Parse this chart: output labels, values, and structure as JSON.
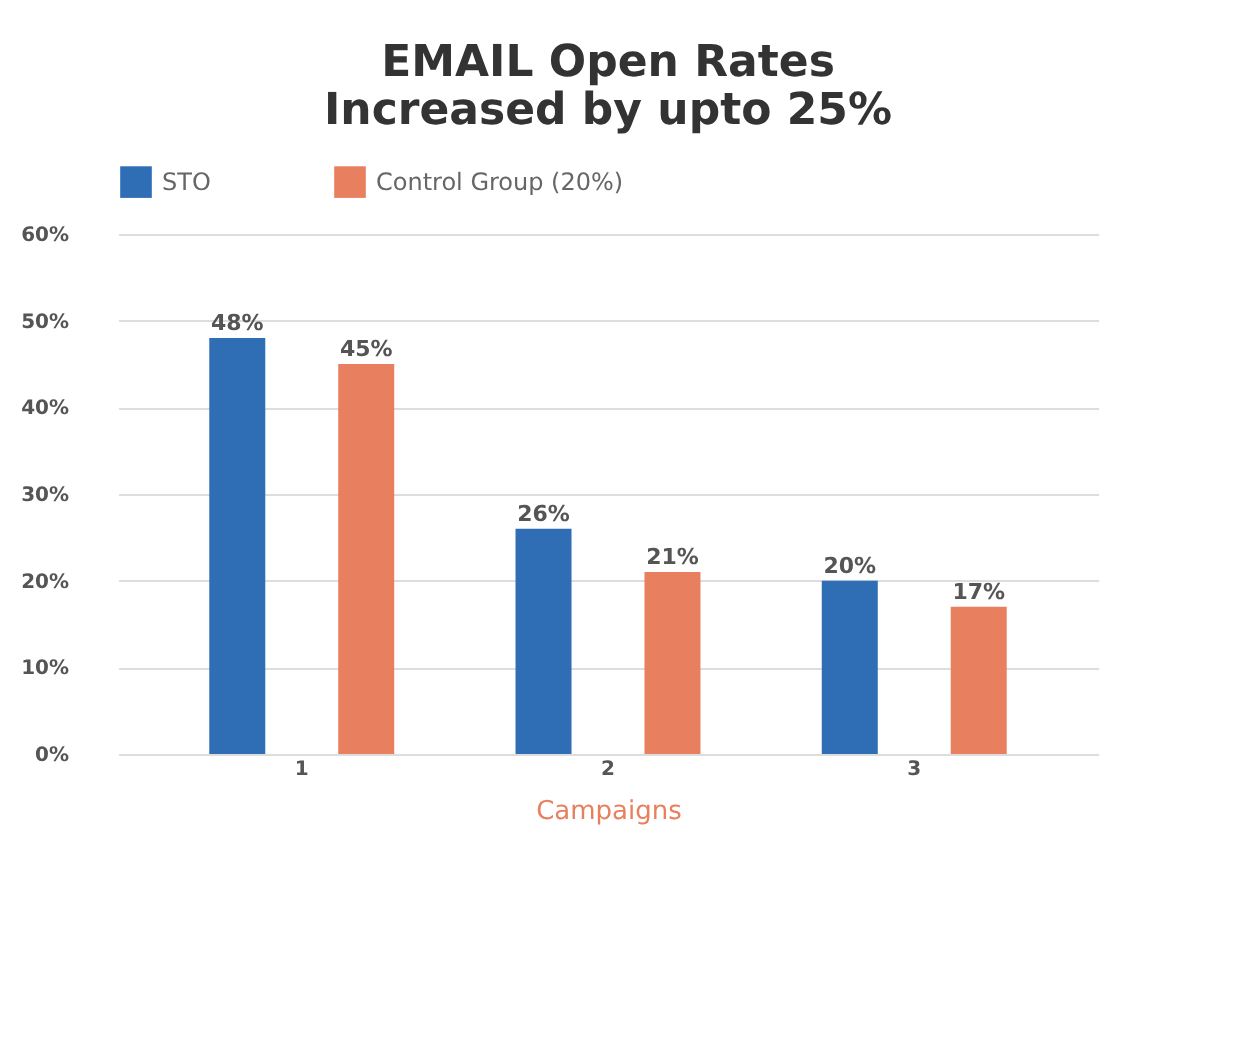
{
  "chart_data": {
    "type": "bar",
    "title": "EMAIL Open Rates\nIncreased by upto 25%",
    "categories": [
      "1",
      "2",
      "3"
    ],
    "xlabel": "Campaigns",
    "series": [
      {
        "name": "STO",
        "color": "#2f6db5",
        "values": [
          48,
          26,
          20
        ],
        "value_labels": [
          "48%",
          "26%",
          "20%"
        ]
      },
      {
        "name": "Control Group (20%)",
        "color": "#e8805f",
        "values": [
          45,
          21,
          17
        ],
        "value_labels": [
          "45%",
          "21%",
          "17%"
        ]
      }
    ],
    "ylim": [
      0,
      60
    ],
    "yticks": [
      {
        "value": 0,
        "label": "0%"
      },
      {
        "value": 10,
        "label": "10%"
      },
      {
        "value": 20,
        "label": "20%"
      },
      {
        "value": 30,
        "label": "30%"
      },
      {
        "value": 40,
        "label": "40%"
      },
      {
        "value": 50,
        "label": "50%"
      },
      {
        "value": 60,
        "label": "60%"
      }
    ],
    "grid": "y",
    "legend": "top"
  }
}
